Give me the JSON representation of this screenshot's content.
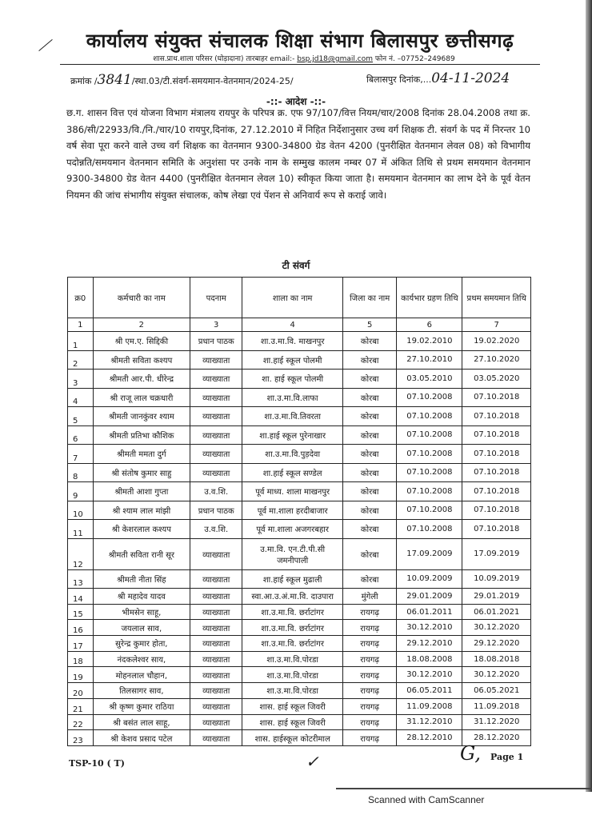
{
  "header": {
    "title": "कार्यालय संयुक्त संचालक शिक्षा संभाग बिलासपुर छत्तीसगढ़",
    "address": "शास.प्राथ.शाला परिसर (घोड़ादाना) तारबाहर email:-",
    "email": "bsp.jd18@gmail.com",
    "phone": "फोन नं. –07752–249689"
  },
  "reference": {
    "label": "क्रमांक /",
    "number_handwritten": "3841",
    "code": "/स्था.03/टी.संवर्ग-समयमान-वेतनमान/2024-25/",
    "place_date_label": "बिलासपुर दिनांक,...",
    "date_handwritten": "04-11-2024"
  },
  "order_heading": "-::- आदेश -::-",
  "body_text": "छ.ग. शासन वित्त एवं योजना विभाग मंत्रालय रायपुर के परिपत्र क्र. एफ 97/107/वित्त नियम/चार/2008 दिनांक 28.04.2008 तथा क्र. 386/सी/22933/वि./नि./चार/10 रायपुर,दिनांक, 27.12.2010 में निहित निर्देशानुसार उच्च वर्ग शिक्षक टी. संवर्ग के पद में निरन्तर 10 वर्ष सेवा पूरा करने वाले उच्च वर्ग शिक्षक का वेतनमान 9300-34800 ग्रेड वेतन 4200 (पुनरीक्षित वेतनमान लेवल 08) को विभागीय पदोन्नति/समयमान वेतनमान समिति के अनुशंसा पर उनके नाम के सम्मुख कालम नम्बर 07 में अंकित तिथि से प्रथम समयमान वेतनमान 9300-34800 ग्रेड वेतन 4400 (पुनरीक्षित वेतनमान लेवल 10) स्वीकृत किया जाता है। समयमान वेतनमान का लाभ देने के पूर्व वेतन नियमन की जांच संभागीय संयुक्त संचालक, कोष लेखा एवं पेंशन से अनिवार्य रूप से कराई जावे।",
  "cadre_heading": "टी संवर्ग",
  "table": {
    "headers": [
      "क्र0",
      "कर्मचारी का नाम",
      "पदनाम",
      "शाला का नाम",
      "जिला का नाम",
      "कार्यभार ग्रहण तिथि",
      "प्रथम समयमान तिथि"
    ],
    "column_numbers": [
      "1",
      "2",
      "3",
      "4",
      "5",
      "6",
      "7"
    ],
    "rows": [
      [
        "1",
        "श्री एम.ए. सिद्दिकी",
        "प्रधान पाठक",
        "शा.उ.मा.वि. माखनपुर",
        "कोरबा",
        "19.02.2010",
        "19.02.2020"
      ],
      [
        "2",
        "श्रीमती सविता कश्यप",
        "व्याख्याता",
        "शा.हाई स्कूल पोलमी",
        "कोरबा",
        "27.10.2010",
        "27.10.2020"
      ],
      [
        "3",
        "श्रीमती आर.पी. धीरेन्द्र",
        "व्याख्याता",
        "शा. हाई स्कूल पोलमी",
        "कोरबा",
        "03.05.2010",
        "03.05.2020"
      ],
      [
        "4",
        "श्री राजू लाल चक्रधारी",
        "व्याख्याता",
        "शा.उ.मा.वि.लाफा",
        "कोरबा",
        "07.10.2008",
        "07.10.2018"
      ],
      [
        "5",
        "श्रीमती जानकुंवर श्याम",
        "व्याख्याता",
        "शा.उ.मा.वि.तिवरता",
        "कोरबा",
        "07.10.2008",
        "07.10.2018"
      ],
      [
        "6",
        "श्रीमती प्रतिभा कौशिक",
        "व्याख्याता",
        "शा.हाई स्कूल पुरेनाखार",
        "कोरबा",
        "07.10.2008",
        "07.10.2018"
      ],
      [
        "7",
        "श्रीमती ममता दुर्ग",
        "व्याख्याता",
        "शा.उ.मा.वि.पुड़देवा",
        "कोरबा",
        "07.10.2008",
        "07.10.2018"
      ],
      [
        "8",
        "श्री संतोष कुमार साहु",
        "व्याख्याता",
        "शा.हाई स्कूल सण्डेल",
        "कोरबा",
        "07.10.2008",
        "07.10.2018"
      ],
      [
        "9",
        "श्रीमती आशा गुप्ता",
        "उ.व.शि.",
        "पूर्व माध्य. शाला माखनपुर",
        "कोरबा",
        "07.10.2008",
        "07.10.2018"
      ],
      [
        "10",
        "श्री श्याम लाल मांझी",
        "प्रधान पाठक",
        "पूर्व मा.शाला हरदीबाजार",
        "कोरबा",
        "07.10.2008",
        "07.10.2018"
      ],
      [
        "11",
        "श्री केशरलाल कश्यप",
        "उ.व.शि.",
        "पूर्व मा.शाला अजगरबहार",
        "कोरबा",
        "07.10.2008",
        "07.10.2018"
      ],
      [
        "12",
        "श्रीमती सविता रानी सूर",
        "व्याख्याता",
        "उ.मा.वि. एन.टी.पी.सी जमनीपाली",
        "कोरबा",
        "17.09.2009",
        "17.09.2019"
      ],
      [
        "13",
        "श्रीमती नीता सिंह",
        "व्याख्याता",
        "शा.हाई स्कूल मुढाली",
        "कोरबा",
        "10.09.2009",
        "10.09.2019"
      ],
      [
        "14",
        "श्री महादेव यादव",
        "व्याख्याता",
        "स्वा.आ.उ.अं.मा.वि. दाउपारा",
        "मुंगेली",
        "29.01.2009",
        "29.01.2019"
      ],
      [
        "15",
        "भीमसेन साहू,",
        "व्याख्याता",
        "शा.उ.मा.वि. छर्राटांगर",
        "रायगढ़",
        "06.01.2011",
        "06.01.2021"
      ],
      [
        "16",
        "जयलाल साव,",
        "व्याख्याता",
        "शा.उ.मा.वि. छर्राटांगर",
        "रायगढ़",
        "30.12.2010",
        "30.12.2020"
      ],
      [
        "17",
        "सुरेन्द्र कुमार होता,",
        "व्याख्याता",
        "शा.उ.मा.वि. छर्राटांगर",
        "रायगढ़",
        "29.12.2010",
        "29.12.2020"
      ],
      [
        "18",
        "नंदकलेश्वर साय,",
        "व्याख्याता",
        "शा.उ.मा.वि.पोरडा",
        "रायगढ़",
        "18.08.2008",
        "18.08.2018"
      ],
      [
        "19",
        "मोहनलाल चौहान,",
        "व्याख्याता",
        "शा.उ.मा.वि.पोरडा",
        "रायगढ़",
        "30.12.2010",
        "30.12.2020"
      ],
      [
        "20",
        "तिलसागर साव,",
        "व्याख्याता",
        "शा.उ.मा.वि.पोरडा",
        "रायगढ़",
        "06.05.2011",
        "06.05.2021"
      ],
      [
        "21",
        "श्री कृष्ण कुमार राठिया",
        "व्याख्याता",
        "शास. हाई स्कूल जिवरी",
        "रायगढ़",
        "11.09.2008",
        "11.09.2018"
      ],
      [
        "22",
        "श्री बसंत लाल साहू,",
        "व्याख्याता",
        "शास. हाई स्कूल जिवरी",
        "रायगढ़",
        "31.12.2010",
        "31.12.2020"
      ],
      [
        "23",
        "श्री केशव प्रसाद पटेल",
        "व्याख्याता",
        "शास. हाईस्कूल कोटरीमाल",
        "रायगढ़",
        "28.12.2010",
        "28.12.2020"
      ]
    ]
  },
  "footer": {
    "form_code": "TSP-10 ( T)",
    "page": "Page 1",
    "scanner_watermark": "Scanned with CamScanner"
  }
}
